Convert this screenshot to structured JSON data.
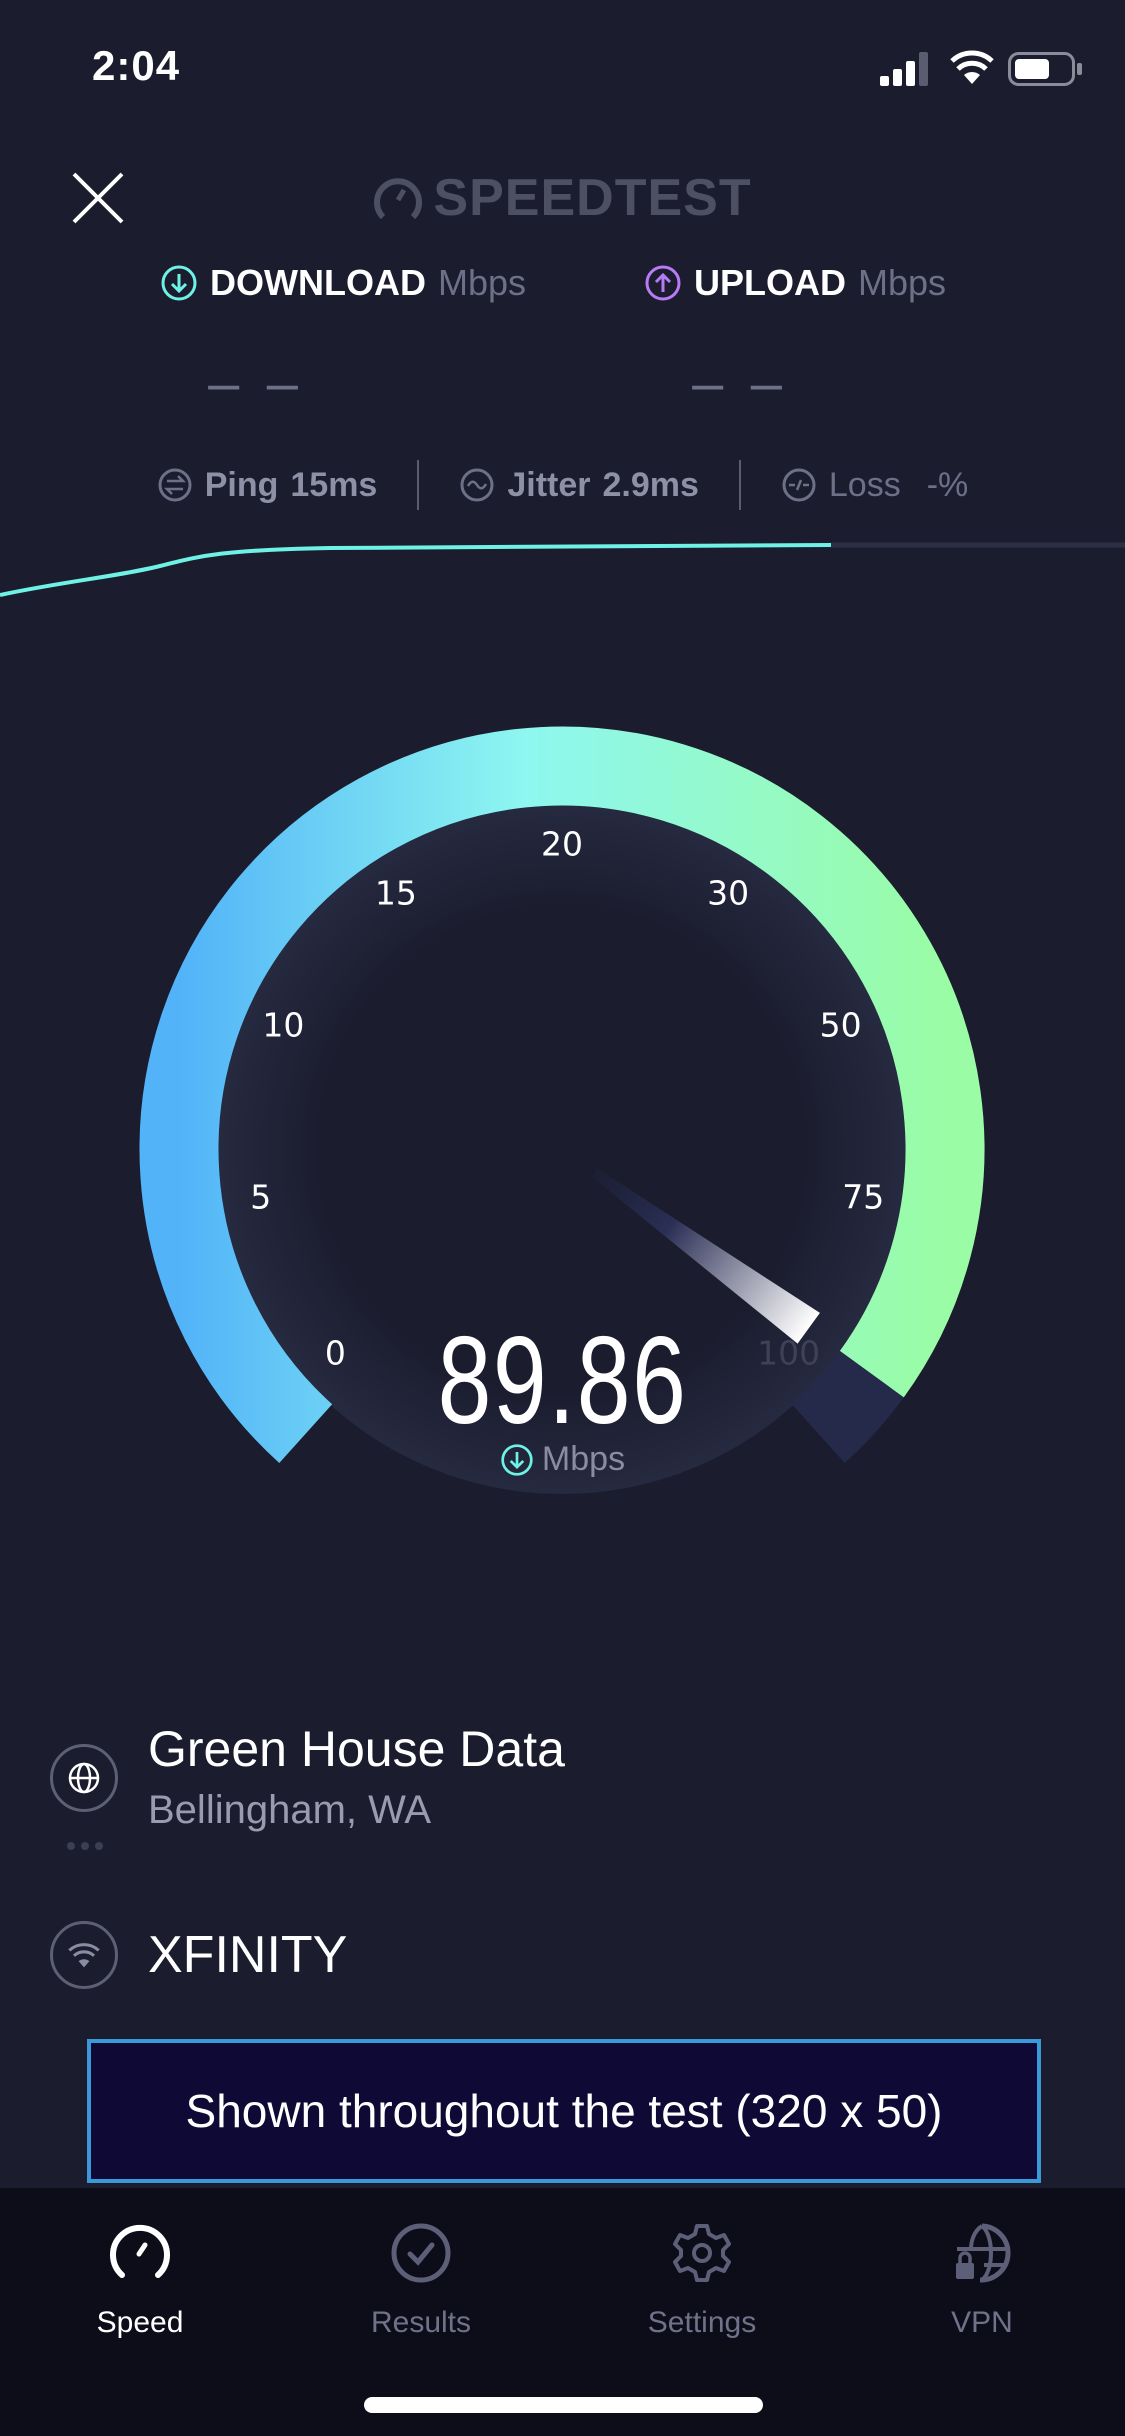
{
  "status_bar": {
    "time": "2:04"
  },
  "header": {
    "logo": "SPEEDTEST"
  },
  "download": {
    "label": "DOWNLOAD",
    "unit": "Mbps",
    "value": "– –",
    "color": "#6ff2e6"
  },
  "upload": {
    "label": "UPLOAD",
    "unit": "Mbps",
    "value": "– –",
    "color": "#b77cf5"
  },
  "stats": {
    "ping": {
      "label": "Ping",
      "value": "15",
      "unit": "ms"
    },
    "jitter": {
      "label": "Jitter",
      "value": "2.9",
      "unit": "ms"
    },
    "loss": {
      "label": "Loss",
      "value": "-",
      "unit": "%"
    }
  },
  "gauge": {
    "value": "89.86",
    "needle_value": 89.86,
    "unit": "Mbps",
    "ticks": [
      "0",
      "5",
      "10",
      "15",
      "20",
      "30",
      "50",
      "75",
      "100"
    ],
    "colors": {
      "start": "#52b3f8",
      "mid": "#8ef7f0",
      "end": "#9afca4",
      "track": "#25294a"
    }
  },
  "server": {
    "name": "Green House Data",
    "location": "Bellingham, WA"
  },
  "isp": {
    "name": "XFINITY"
  },
  "ad": {
    "text": "Shown throughout the test (320 x 50)"
  },
  "tabs": [
    {
      "label": "Speed",
      "icon": "speedometer-icon",
      "active": true
    },
    {
      "label": "Results",
      "icon": "check-circle-icon",
      "active": false
    },
    {
      "label": "Settings",
      "icon": "gear-icon",
      "active": false
    },
    {
      "label": "VPN",
      "icon": "globe-lock-icon",
      "active": false
    }
  ]
}
